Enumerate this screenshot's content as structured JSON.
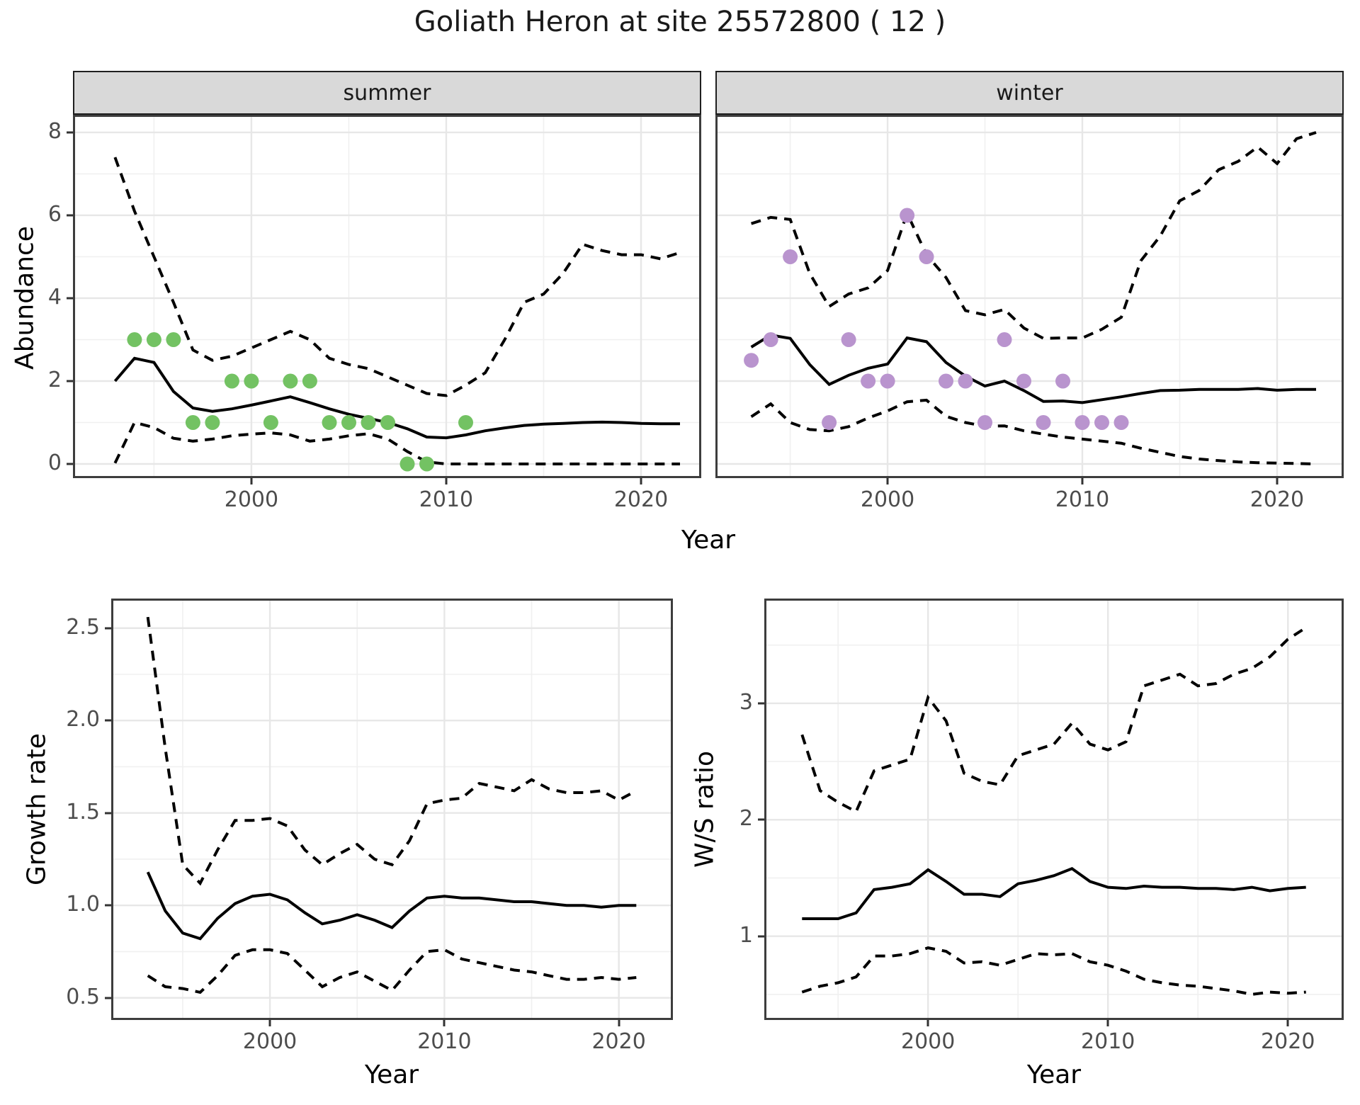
{
  "title": "Goliath Heron at site 25572800 ( 12 )",
  "axis_labels": {
    "x": "Year",
    "abundance": "Abundance",
    "growth": "Growth rate",
    "ws": "W/S ratio"
  },
  "facets": {
    "summer": "summer",
    "winter": "winter"
  },
  "colors": {
    "summer_point": "#73c263",
    "winter_point": "#b994ce",
    "line": "#000000",
    "strip_bg": "#d9d9d9",
    "panel_border": "#3d3d3d",
    "grid_major": "#e7e7e7",
    "grid_minor": "#f0f0f0",
    "tick_text": "#4d4d4d"
  },
  "chart_data": [
    {
      "id": "abundance-summer",
      "type": "line",
      "facet": "summer",
      "ylabel": "Abundance",
      "xlabel": "Year",
      "x_domain": [
        1990.84,
        2023.09
      ],
      "y_domain": [
        -0.342,
        8.427
      ],
      "x_ticks": [
        2000,
        2010,
        2020
      ],
      "x_tick_labels": [
        "2000",
        "2010",
        "2020"
      ],
      "x_minor": [
        1995,
        2005,
        2015
      ],
      "y_ticks": [
        0,
        2,
        4,
        6,
        8
      ],
      "y_tick_labels": [
        "0",
        "2",
        "4",
        "6",
        "8"
      ],
      "y_minor": [
        1,
        3,
        5,
        7
      ],
      "start_year": 1993,
      "series": [
        {
          "name": "mean",
          "style": "solid",
          "values": [
            2.0,
            2.55,
            2.45,
            1.75,
            1.35,
            1.27,
            1.33,
            1.42,
            1.52,
            1.62,
            1.48,
            1.33,
            1.2,
            1.1,
            1.0,
            0.85,
            0.65,
            0.63,
            0.7,
            0.8,
            0.87,
            0.93,
            0.96,
            0.98,
            1.0,
            1.01,
            1.0,
            0.98,
            0.97,
            0.97
          ]
        },
        {
          "name": "upper_ci",
          "style": "dashed",
          "values": [
            7.4,
            6.1,
            5.0,
            3.9,
            2.75,
            2.5,
            2.6,
            2.8,
            3.0,
            3.2,
            3.0,
            2.55,
            2.4,
            2.3,
            2.1,
            1.9,
            1.7,
            1.65,
            1.9,
            2.2,
            3.0,
            3.9,
            4.1,
            4.6,
            5.3,
            5.15,
            5.05,
            5.05,
            4.95,
            5.1
          ]
        },
        {
          "name": "lower_ci",
          "style": "dashed",
          "values": [
            0.02,
            1.0,
            0.88,
            0.62,
            0.55,
            0.6,
            0.68,
            0.72,
            0.75,
            0.7,
            0.55,
            0.6,
            0.68,
            0.73,
            0.6,
            0.3,
            0.05,
            0,
            0,
            0,
            0,
            0,
            0,
            0,
            0,
            0,
            0,
            0,
            0,
            0
          ]
        }
      ],
      "points": {
        "color_key": "summer_point",
        "data": [
          [
            1994,
            3
          ],
          [
            1995,
            3
          ],
          [
            1996,
            3
          ],
          [
            1997,
            1
          ],
          [
            1998,
            1
          ],
          [
            1999,
            2
          ],
          [
            2000,
            2
          ],
          [
            2001,
            1
          ],
          [
            2002,
            2
          ],
          [
            2003,
            2
          ],
          [
            2004,
            1
          ],
          [
            2005,
            1
          ],
          [
            2006,
            1
          ],
          [
            2007,
            1
          ],
          [
            2008,
            0
          ],
          [
            2009,
            0
          ],
          [
            2011,
            1
          ]
        ]
      }
    },
    {
      "id": "abundance-winter",
      "type": "line",
      "facet": "winter",
      "ylabel": "Abundance",
      "xlabel": "Year",
      "x_domain": [
        1991.16,
        2023.42
      ],
      "y_domain": [
        -0.342,
        8.427
      ],
      "x_ticks": [
        2000,
        2010,
        2020
      ],
      "x_tick_labels": [
        "2000",
        "2010",
        "2020"
      ],
      "x_minor": [
        1995,
        2005,
        2015
      ],
      "y_ticks": [
        0,
        2,
        4,
        6,
        8
      ],
      "y_tick_labels": [
        "0",
        "2",
        "4",
        "6",
        "8"
      ],
      "y_minor": [
        1,
        3,
        5,
        7
      ],
      "start_year": 1993,
      "series": [
        {
          "name": "mean",
          "style": "solid",
          "values": [
            2.82,
            3.11,
            3.03,
            2.4,
            1.92,
            2.14,
            2.31,
            2.41,
            3.04,
            2.95,
            2.45,
            2.12,
            1.88,
            2.0,
            1.77,
            1.51,
            1.52,
            1.48,
            1.55,
            1.62,
            1.7,
            1.77,
            1.78,
            1.8,
            1.8,
            1.8,
            1.82,
            1.78,
            1.8,
            1.8
          ]
        },
        {
          "name": "upper_ci",
          "style": "dashed",
          "values": [
            5.8,
            5.95,
            5.9,
            4.6,
            3.8,
            4.1,
            4.25,
            4.67,
            6.05,
            5.05,
            4.5,
            3.7,
            3.6,
            3.73,
            3.28,
            3.03,
            3.04,
            3.04,
            3.25,
            3.54,
            4.9,
            5.5,
            6.35,
            6.6,
            7.1,
            7.3,
            7.65,
            7.25,
            7.85,
            8.0
          ]
        },
        {
          "name": "lower_ci",
          "style": "dashed",
          "values": [
            1.14,
            1.45,
            1.0,
            0.83,
            0.8,
            0.9,
            1.11,
            1.28,
            1.5,
            1.54,
            1.15,
            1.0,
            0.91,
            0.92,
            0.8,
            0.72,
            0.65,
            0.6,
            0.55,
            0.5,
            0.38,
            0.28,
            0.18,
            0.12,
            0.08,
            0.05,
            0.03,
            0.02,
            0.01,
            0.0
          ]
        }
      ],
      "points": {
        "color_key": "winter_point",
        "data": [
          [
            1993,
            2.5
          ],
          [
            1994,
            3
          ],
          [
            1995,
            5
          ],
          [
            1997,
            1
          ],
          [
            1998,
            3
          ],
          [
            1999,
            2
          ],
          [
            2000,
            2
          ],
          [
            2001,
            6
          ],
          [
            2002,
            5
          ],
          [
            2003,
            2
          ],
          [
            2004,
            2
          ],
          [
            2005,
            1
          ],
          [
            2006,
            3
          ],
          [
            2007,
            2
          ],
          [
            2008,
            1
          ],
          [
            2009,
            2
          ],
          [
            2010,
            1
          ],
          [
            2011,
            1
          ],
          [
            2012,
            1
          ]
        ]
      }
    },
    {
      "id": "growth-rate",
      "type": "line",
      "facet": null,
      "ylabel": "Growth rate",
      "xlabel": "Year",
      "x_domain": [
        1990.9,
        2023.1
      ],
      "y_domain": [
        0.38,
        2.66
      ],
      "x_ticks": [
        2000,
        2010,
        2020
      ],
      "x_tick_labels": [
        "2000",
        "2010",
        "2020"
      ],
      "x_minor": [
        1995,
        2005,
        2015
      ],
      "y_ticks": [
        0.5,
        1.0,
        1.5,
        2.0,
        2.5
      ],
      "y_tick_labels": [
        "0.5",
        "1.0",
        "1.5",
        "2.0",
        "2.5"
      ],
      "y_minor": [
        0.75,
        1.25,
        1.75,
        2.25
      ],
      "start_year": 1993,
      "series": [
        {
          "name": "mean",
          "style": "solid",
          "values": [
            1.18,
            0.97,
            0.85,
            0.82,
            0.93,
            1.01,
            1.05,
            1.06,
            1.03,
            0.96,
            0.9,
            0.92,
            0.95,
            0.92,
            0.88,
            0.97,
            1.04,
            1.05,
            1.04,
            1.04,
            1.03,
            1.02,
            1.02,
            1.01,
            1.0,
            1.0,
            0.99,
            1.0,
            1.0
          ]
        },
        {
          "name": "upper_ci",
          "style": "dashed",
          "values": [
            2.56,
            1.85,
            1.22,
            1.12,
            1.3,
            1.46,
            1.46,
            1.47,
            1.43,
            1.3,
            1.22,
            1.28,
            1.33,
            1.25,
            1.22,
            1.35,
            1.55,
            1.57,
            1.58,
            1.66,
            1.64,
            1.62,
            1.68,
            1.63,
            1.61,
            1.61,
            1.62,
            1.57,
            1.62
          ]
        },
        {
          "name": "lower_ci",
          "style": "dashed",
          "values": [
            0.62,
            0.56,
            0.55,
            0.53,
            0.62,
            0.73,
            0.76,
            0.76,
            0.74,
            0.65,
            0.56,
            0.61,
            0.64,
            0.59,
            0.54,
            0.65,
            0.75,
            0.76,
            0.71,
            0.69,
            0.67,
            0.65,
            0.64,
            0.62,
            0.6,
            0.6,
            0.61,
            0.6,
            0.61
          ]
        }
      ],
      "points": null
    },
    {
      "id": "ws-ratio",
      "type": "line",
      "facet": null,
      "ylabel": "W/S ratio",
      "xlabel": "Year",
      "x_domain": [
        1990.9,
        2023.1
      ],
      "y_domain": [
        0.28,
        3.9
      ],
      "x_ticks": [
        2000,
        2010,
        2020
      ],
      "x_tick_labels": [
        "2000",
        "2010",
        "2020"
      ],
      "x_minor": [
        1995,
        2005,
        2015
      ],
      "y_ticks": [
        1,
        2,
        3
      ],
      "y_tick_labels": [
        "1",
        "2",
        "3"
      ],
      "y_minor": [
        0.5,
        1.5,
        2.5,
        3.5
      ],
      "start_year": 1993,
      "series": [
        {
          "name": "mean",
          "style": "solid",
          "values": [
            1.15,
            1.15,
            1.15,
            1.2,
            1.4,
            1.42,
            1.45,
            1.57,
            1.47,
            1.36,
            1.36,
            1.34,
            1.45,
            1.48,
            1.52,
            1.58,
            1.47,
            1.42,
            1.41,
            1.43,
            1.42,
            1.42,
            1.41,
            1.41,
            1.4,
            1.42,
            1.39,
            1.41,
            1.42
          ]
        },
        {
          "name": "upper_ci",
          "style": "dashed",
          "values": [
            2.73,
            2.25,
            2.15,
            2.07,
            2.42,
            2.47,
            2.52,
            3.05,
            2.85,
            2.4,
            2.33,
            2.3,
            2.55,
            2.6,
            2.65,
            2.83,
            2.65,
            2.6,
            2.67,
            3.15,
            3.2,
            3.25,
            3.15,
            3.17,
            3.25,
            3.3,
            3.4,
            3.55,
            3.65
          ]
        },
        {
          "name": "lower_ci",
          "style": "dashed",
          "values": [
            0.52,
            0.57,
            0.6,
            0.65,
            0.83,
            0.83,
            0.85,
            0.9,
            0.87,
            0.77,
            0.78,
            0.75,
            0.8,
            0.85,
            0.84,
            0.85,
            0.78,
            0.75,
            0.7,
            0.63,
            0.6,
            0.58,
            0.57,
            0.55,
            0.53,
            0.5,
            0.52,
            0.51,
            0.52
          ]
        }
      ],
      "points": null
    }
  ]
}
